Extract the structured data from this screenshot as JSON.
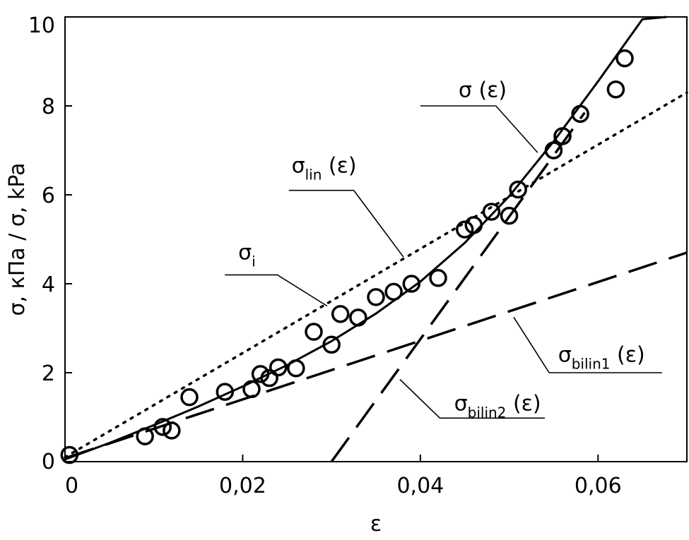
{
  "chart_data": {
    "type": "scatter",
    "xlabel": "ε",
    "ylabel": "σ, кПа / σ, kPa",
    "xlim": [
      0,
      0.07
    ],
    "ylim": [
      0,
      10
    ],
    "x_ticks": [
      0,
      0.02,
      0.04,
      0.06
    ],
    "x_tick_labels": [
      "0",
      "0,02",
      "0,04",
      "0,06"
    ],
    "y_ticks": [
      0,
      2,
      4,
      6,
      8,
      10
    ],
    "y_tick_labels": [
      "0",
      "2",
      "4",
      "6",
      "8",
      "10"
    ],
    "grid": false,
    "series": [
      {
        "name": "σi",
        "style": "open-circles",
        "points": [
          [
            0.0005,
            0.15
          ],
          [
            0.009,
            0.57
          ],
          [
            0.011,
            0.78
          ],
          [
            0.012,
            0.7
          ],
          [
            0.014,
            1.45
          ],
          [
            0.018,
            1.57
          ],
          [
            0.021,
            1.63
          ],
          [
            0.022,
            1.97
          ],
          [
            0.023,
            1.88
          ],
          [
            0.024,
            2.12
          ],
          [
            0.026,
            2.1
          ],
          [
            0.028,
            2.92
          ],
          [
            0.03,
            2.63
          ],
          [
            0.031,
            3.32
          ],
          [
            0.033,
            3.24
          ],
          [
            0.035,
            3.7
          ],
          [
            0.037,
            3.82
          ],
          [
            0.039,
            4.0
          ],
          [
            0.042,
            4.13
          ],
          [
            0.045,
            5.22
          ],
          [
            0.046,
            5.32
          ],
          [
            0.048,
            5.62
          ],
          [
            0.05,
            5.53
          ],
          [
            0.051,
            6.12
          ],
          [
            0.055,
            7.0
          ],
          [
            0.056,
            7.32
          ],
          [
            0.058,
            7.82
          ],
          [
            0.062,
            8.37
          ],
          [
            0.063,
            9.07
          ]
        ]
      },
      {
        "name": "σ (ε)",
        "style": "solid",
        "points": [
          [
            0.0,
            0.05
          ],
          [
            0.005,
            0.42
          ],
          [
            0.01,
            0.82
          ],
          [
            0.015,
            1.24
          ],
          [
            0.02,
            1.69
          ],
          [
            0.025,
            2.17
          ],
          [
            0.03,
            2.71
          ],
          [
            0.035,
            3.33
          ],
          [
            0.04,
            4.05
          ],
          [
            0.045,
            4.92
          ],
          [
            0.05,
            5.97
          ],
          [
            0.055,
            7.2
          ],
          [
            0.06,
            8.55
          ],
          [
            0.065,
            9.95
          ],
          [
            0.0677,
            10.0
          ]
        ]
      },
      {
        "name": "σlin (ε)",
        "style": "dotted",
        "points": [
          [
            0.0,
            0.1
          ],
          [
            0.07,
            8.3
          ]
        ]
      },
      {
        "name": "σbilin1 (ε)",
        "style": "dashed",
        "points": [
          [
            0.0,
            0.08
          ],
          [
            0.07,
            4.7
          ]
        ]
      },
      {
        "name": "σbilin2 (ε)",
        "style": "dashed",
        "points": [
          [
            0.03,
            0.0
          ],
          [
            0.0585,
            7.85
          ]
        ]
      }
    ],
    "annotations": [
      {
        "text": "σ (ε)",
        "main": "σ (ε)",
        "sub": "",
        "suffix": "",
        "label_at": [
          0.0443,
          8.2
        ],
        "line": [
          [
            0.04,
            8.0
          ],
          [
            0.0485,
            8.0
          ],
          [
            0.0532,
            6.95
          ]
        ],
        "target": [
          0.0532,
          6.95
        ]
      },
      {
        "text": "σlin (ε)",
        "main": "σ",
        "sub": "lin",
        "suffix": " (ε)",
        "label_at": [
          0.0255,
          6.5
        ],
        "line": [
          [
            0.0252,
            6.1
          ],
          [
            0.0325,
            6.1
          ],
          [
            0.0381,
            4.6
          ]
        ],
        "target": [
          0.0381,
          4.6
        ]
      },
      {
        "text": "σi",
        "main": "σ",
        "sub": "i",
        "suffix": "",
        "label_at": [
          0.0195,
          4.55
        ],
        "line": [
          [
            0.018,
            4.2
          ],
          [
            0.0239,
            4.2
          ],
          [
            0.0295,
            3.5
          ]
        ],
        "target": [
          0.0295,
          3.5
        ]
      },
      {
        "text": "σbilin1 (ε)",
        "main": "σ",
        "sub": "bilin1",
        "suffix": " (ε)",
        "label_at": [
          0.0555,
          2.25
        ],
        "line": [
          [
            0.0672,
            2.0
          ],
          [
            0.0545,
            2.0
          ],
          [
            0.0505,
            3.25
          ]
        ],
        "target": [
          0.0505,
          3.25
        ]
      },
      {
        "text": "σbilin2 (ε)",
        "main": "σ",
        "sub": "bilin2",
        "suffix": " (ε)",
        "label_at": [
          0.0438,
          1.15
        ],
        "line": [
          [
            0.054,
            0.98
          ],
          [
            0.0422,
            0.98
          ],
          [
            0.0377,
            1.85
          ]
        ],
        "target": [
          0.0377,
          1.85
        ]
      }
    ]
  }
}
